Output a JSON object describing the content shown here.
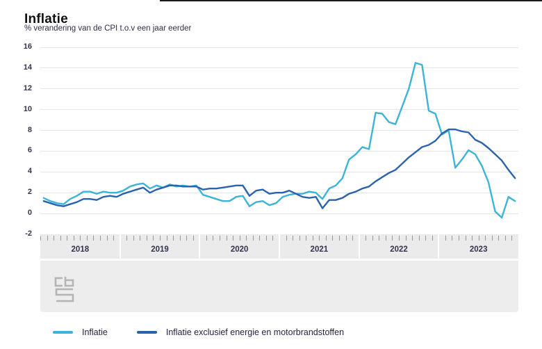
{
  "page": {
    "title": "Inflatie",
    "subtitle": "% verandering van de CPI t.o.v een jaar eerder"
  },
  "icons": {
    "menu": "hamburger-menu-icon",
    "logo": "cbs-logo-icon",
    "logo_text": "cbs"
  },
  "colors": {
    "inflation_line": "#3cb4d9",
    "core_inflation_line": "#2b62ae",
    "gridline": "#e5e5e5",
    "axis_band": "#ebebeb",
    "label_text": "#33334d"
  },
  "chart_data": {
    "type": "line",
    "title": "Inflatie",
    "subtitle": "% verandering van de CPI t.o.v een jaar eerder",
    "x_unit": "month",
    "x_start": "2018-01",
    "x_end": "2023-12",
    "year_labels": [
      "2018",
      "2019",
      "2020",
      "2021",
      "2022",
      "2023"
    ],
    "yticks": [
      16,
      14,
      12,
      10,
      8,
      6,
      4,
      2,
      0,
      -2
    ],
    "ylim": [
      -2,
      16
    ],
    "grid": "horizontal",
    "legend_position": "bottom",
    "series": [
      {
        "name": "Inflatie",
        "color": "#3cb4d9",
        "values": [
          1.5,
          1.2,
          1.0,
          0.9,
          1.4,
          1.7,
          2.1,
          2.1,
          1.9,
          2.1,
          2.0,
          2.0,
          2.2,
          2.6,
          2.8,
          2.9,
          2.4,
          2.7,
          2.5,
          2.8,
          2.6,
          2.7,
          2.6,
          2.7,
          1.8,
          1.6,
          1.4,
          1.2,
          1.2,
          1.6,
          1.7,
          0.7,
          1.1,
          1.2,
          0.8,
          1.0,
          1.6,
          1.8,
          1.9,
          1.9,
          2.1,
          2.0,
          1.4,
          2.4,
          2.7,
          3.4,
          5.2,
          5.7,
          6.4,
          6.2,
          9.7,
          9.6,
          8.8,
          8.6,
          10.3,
          12.0,
          14.5,
          14.3,
          9.9,
          9.6,
          7.6,
          8.0,
          4.4,
          5.2,
          6.1,
          5.7,
          4.6,
          3.0,
          0.2,
          -0.4,
          1.6,
          1.2
        ]
      },
      {
        "name": "Inflatie exclusief energie en motorbrandstoffen",
        "color": "#2b62ae",
        "values": [
          1.2,
          1.0,
          0.8,
          0.7,
          0.9,
          1.1,
          1.4,
          1.4,
          1.3,
          1.6,
          1.7,
          1.6,
          1.9,
          2.1,
          2.3,
          2.5,
          2.0,
          2.3,
          2.5,
          2.7,
          2.7,
          2.6,
          2.6,
          2.6,
          2.3,
          2.4,
          2.4,
          2.5,
          2.6,
          2.7,
          2.7,
          1.7,
          2.2,
          2.3,
          1.9,
          2.0,
          2.0,
          2.2,
          1.9,
          1.6,
          1.5,
          1.6,
          0.5,
          1.3,
          1.3,
          1.5,
          1.9,
          2.1,
          2.4,
          2.6,
          3.1,
          3.5,
          3.9,
          4.2,
          4.8,
          5.4,
          5.9,
          6.4,
          6.6,
          7.0,
          7.7,
          8.1,
          8.1,
          7.9,
          7.8,
          7.1,
          6.8,
          6.3,
          5.7,
          5.1,
          4.2,
          3.4
        ]
      }
    ]
  }
}
